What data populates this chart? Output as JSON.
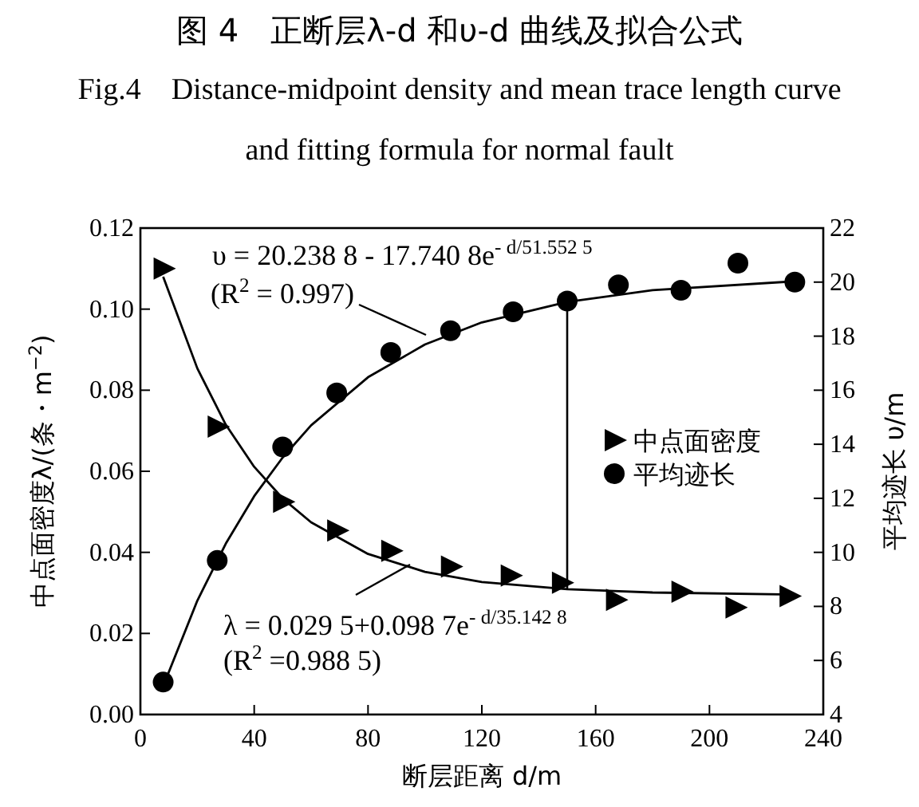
{
  "chart_data": {
    "type": "scatter",
    "title": "图 4　正断层λ-d 和υ-d 曲线及拟合公式",
    "subtitle": "Fig.4　Distance-midpoint density and mean trace length curve and fitting formula for normal fault",
    "xlabel": "断层距离 d/m",
    "ylabel": "中点面密度λ/(条・m$^{−2}$)",
    "y2label": "平均迹长 υ/m",
    "annotations": [
      "υ = 20.238 8 - 17.740 8e$^{- d/51.552 5}$",
      "(R$^{2}$ = 0.997)",
      "λ = 0.029 5+0.098 7e$^{- d/35.142 8}$",
      "(R$^{2}$ =0.988 5)"
    ],
    "series": [
      {
        "name": "中点面密度",
        "marker": "triangle",
        "color": "#000000",
        "x": [
          8,
          27,
          50,
          69,
          88,
          109,
          130,
          148,
          167,
          190,
          209,
          228
        ],
        "values": [
          0.11,
          0.071,
          0.0525,
          0.0454,
          0.0404,
          0.0365,
          0.0343,
          0.0325,
          0.0283,
          0.0303,
          0.0264,
          0.0292
        ]
      },
      {
        "name": "平均迹长",
        "marker": "circle",
        "axis": "y2",
        "color": "#000000",
        "x": [
          8,
          27,
          50,
          69,
          88,
          109,
          131,
          150,
          168,
          190,
          210,
          230
        ],
        "values": [
          5.2,
          9.7,
          13.9,
          15.9,
          17.4,
          18.2,
          18.9,
          19.3,
          19.9,
          19.7,
          20.7,
          20.0
        ]
      },
      {
        "type": "line",
        "color": "#000000",
        "x": [
          8,
          20,
          30,
          40,
          50,
          60,
          80,
          100,
          120,
          150,
          180,
          230
        ],
        "values": [
          0.108,
          0.0854,
          0.0715,
          0.0611,
          0.0533,
          0.0474,
          0.0396,
          0.0352,
          0.0327,
          0.0309,
          0.0301,
          0.0296
        ]
      },
      {
        "type": "line",
        "axis": "y2",
        "color": "#000000",
        "x": [
          8,
          20,
          30,
          40,
          50,
          60,
          80,
          100,
          120,
          150,
          180,
          230
        ],
        "values": [
          5.05,
          8.21,
          10.32,
          12.08,
          13.51,
          14.7,
          16.48,
          17.69,
          18.51,
          19.27,
          19.7,
          20.03
        ]
      }
    ],
    "xlim": [
      0,
      240
    ],
    "xticks": [
      0,
      40,
      80,
      120,
      160,
      200,
      240
    ],
    "ylim": [
      0,
      0.12
    ],
    "yticks": [
      {
        "value": 0,
        "label": "0.00"
      },
      {
        "value": 0.02,
        "label": "0.02"
      },
      {
        "value": 0.04,
        "label": "0.04"
      },
      {
        "value": 0.06,
        "label": "0.06"
      },
      {
        "value": 0.08,
        "label": "0.08"
      },
      {
        "value": 0.1,
        "label": "0.10"
      },
      {
        "value": 0.12,
        "label": "0.12"
      }
    ],
    "y2lim": [
      4,
      22
    ],
    "y2ticks": [
      4,
      6,
      8,
      10,
      12,
      14,
      16,
      18,
      20,
      22
    ],
    "legend": "right",
    "grid": false
  }
}
